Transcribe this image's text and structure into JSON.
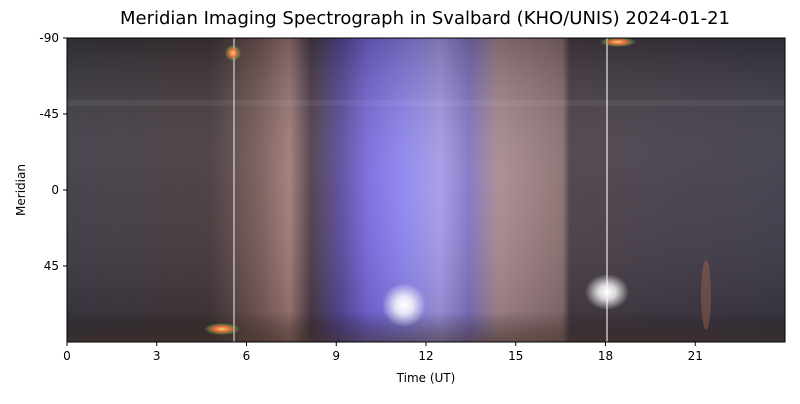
{
  "chart_data": {
    "type": "image",
    "title": "Meridian Imaging Spectrograph in Svalbard (KHO/UNIS) 2024-01-21",
    "xlabel": "Time (UT)",
    "ylabel": "Meridian",
    "xlim": [
      0,
      24
    ],
    "xticks": [
      0,
      3,
      6,
      9,
      12,
      15,
      18,
      21
    ],
    "ylim": [
      90,
      -90
    ],
    "yticks": [
      -90,
      -45,
      0,
      45
    ]
  }
}
